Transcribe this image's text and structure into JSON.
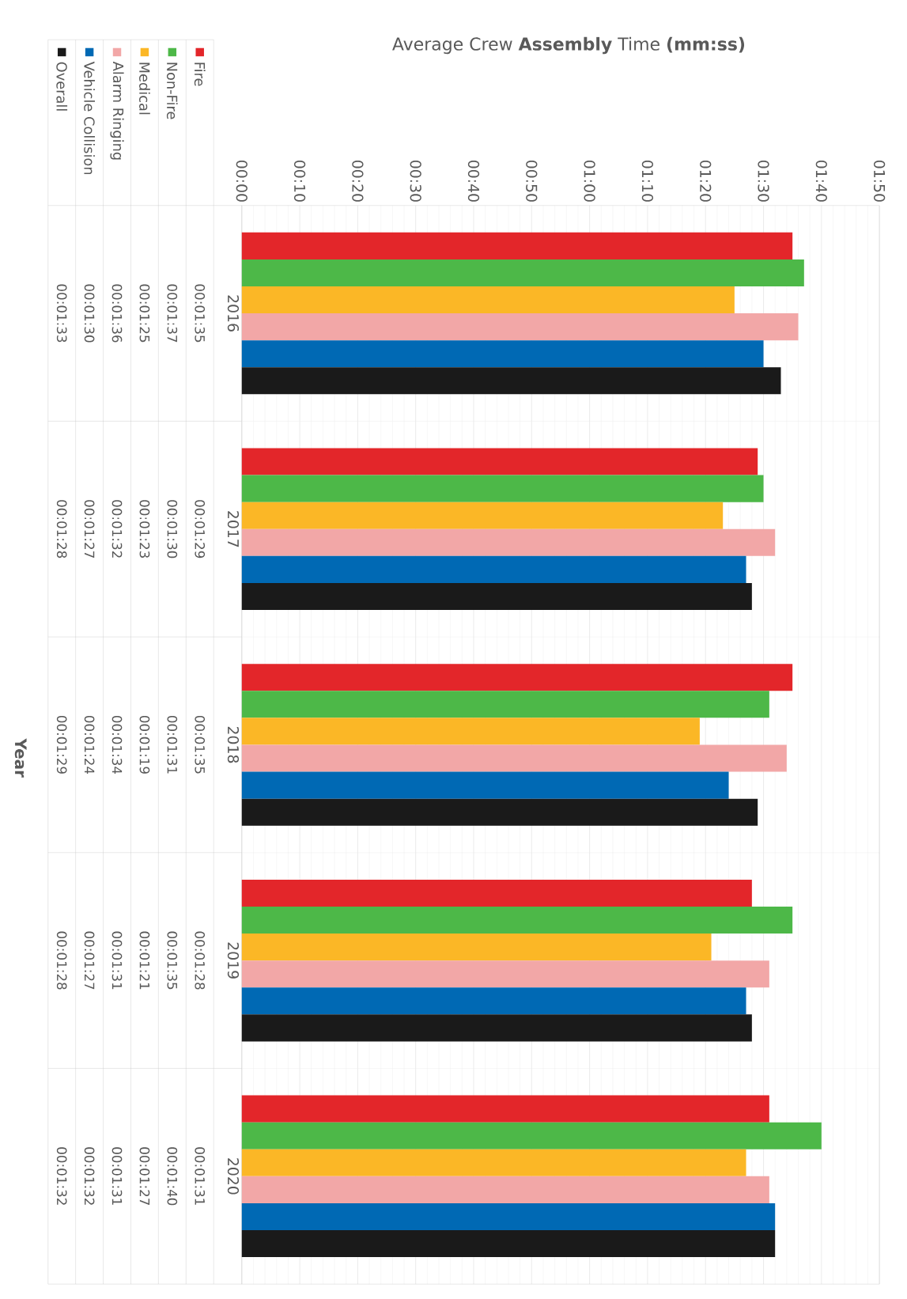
{
  "chart_data": {
    "type": "bar",
    "orientation": "horizontal",
    "title": "Average Crew **Assembly** Time **(mm:ss)**",
    "annotations": [
      "Year"
    ],
    "categories": [
      "2016",
      "2017",
      "2018",
      "2019",
      "2020"
    ],
    "xlim": [
      0,
      110
    ],
    "xticks": [
      {
        "value": 0,
        "label": "00:00"
      },
      {
        "value": 10,
        "label": "00:10"
      },
      {
        "value": 20,
        "label": "00:20"
      },
      {
        "value": 30,
        "label": "00:30"
      },
      {
        "value": 40,
        "label": "00:40"
      },
      {
        "value": 50,
        "label": "00:50"
      },
      {
        "value": 60,
        "label": "01:00"
      },
      {
        "value": 70,
        "label": "01:10"
      },
      {
        "value": 80,
        "label": "01:20"
      },
      {
        "value": 90,
        "label": "01:30"
      },
      {
        "value": 100,
        "label": "01:40"
      },
      {
        "value": 110,
        "label": "01:50"
      }
    ],
    "grid": true,
    "legend": "left",
    "series": [
      {
        "name": "Fire",
        "color": "#e3262a",
        "values": [
          95,
          89,
          95,
          88,
          91
        ],
        "value_labels": [
          "00:01:35",
          "00:01:29",
          "00:01:35",
          "00:01:28",
          "00:01:31"
        ]
      },
      {
        "name": "Non-Fire",
        "color": "#4db848",
        "values": [
          97,
          90,
          91,
          95,
          100
        ],
        "value_labels": [
          "00:01:37",
          "00:01:30",
          "00:01:31",
          "00:01:35",
          "00:01:40"
        ]
      },
      {
        "name": "Medical",
        "color": "#fbb726",
        "values": [
          85,
          83,
          79,
          81,
          87
        ],
        "value_labels": [
          "00:01:25",
          "00:01:23",
          "00:01:19",
          "00:01:21",
          "00:01:27"
        ]
      },
      {
        "name": "Alarm Ringing",
        "color": "#f2a7a7",
        "values": [
          96,
          92,
          94,
          91,
          91
        ],
        "value_labels": [
          "00:01:36",
          "00:01:32",
          "00:01:34",
          "00:01:31",
          "00:01:31"
        ]
      },
      {
        "name": "Vehicle Collision",
        "color": "#0069b4",
        "values": [
          90,
          87,
          84,
          87,
          92
        ],
        "value_labels": [
          "00:01:30",
          "00:01:27",
          "00:01:24",
          "00:01:27",
          "00:01:32"
        ]
      },
      {
        "name": "Overall",
        "color": "#1a1a1a",
        "values": [
          93,
          88,
          89,
          88,
          92
        ],
        "value_labels": [
          "00:01:33",
          "00:01:28",
          "00:01:29",
          "00:01:28",
          "00:01:32"
        ]
      }
    ]
  }
}
